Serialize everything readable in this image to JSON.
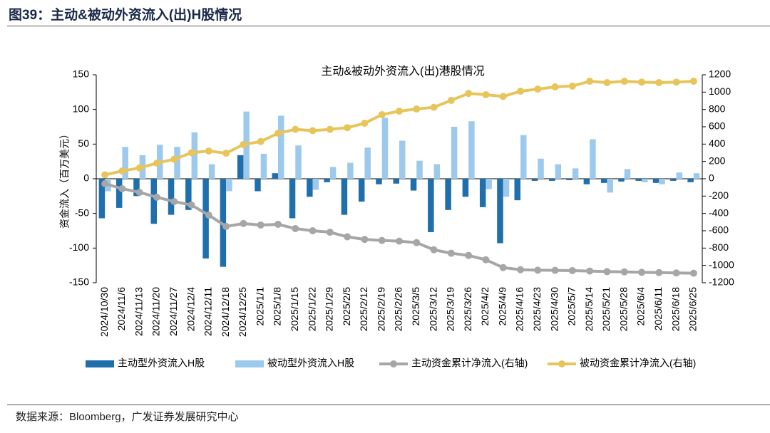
{
  "header": {
    "title": "图39：主动&被动外资流入(出)H股情况"
  },
  "footer": {
    "source": "数据来源：Bloomberg，广发证券发展研究中心"
  },
  "chart_data": {
    "type": "bar",
    "title": "主动&被动外资流入(出)港股情况",
    "y_label": "资金流入（百万美元）",
    "categories": [
      "2024/10/30",
      "2024/11/6",
      "2024/11/13",
      "2024/11/20",
      "2024/11/27",
      "2024/12/4",
      "2024/12/11",
      "2024/12/18",
      "2024/12/25",
      "2025/1/1",
      "2025/1/8",
      "2025/1/15",
      "2025/1/22",
      "2025/1/29",
      "2025/2/5",
      "2025/2/12",
      "2025/2/19",
      "2025/2/26",
      "2025/3/5",
      "2025/3/12",
      "2025/3/19",
      "2025/3/26",
      "2025/4/2",
      "2025/4/9",
      "2025/4/16",
      "2025/4/23",
      "2025/4/30",
      "2025/5/7",
      "2025/5/14",
      "2025/5/21",
      "2025/5/28",
      "2025/6/4",
      "2025/6/11",
      "2025/6/18",
      "2025/6/25"
    ],
    "ylim": [
      -150,
      150
    ],
    "yticks": [
      -150,
      -100,
      -50,
      0,
      50,
      100,
      150
    ],
    "y2lim": [
      -1200,
      1200
    ],
    "y2ticks": [
      -1200,
      -1000,
      -800,
      -600,
      -400,
      -200,
      0,
      200,
      400,
      600,
      800,
      1000,
      1200
    ],
    "series": [
      {
        "name": "主动型外资流入H股",
        "type": "bar",
        "color": "#1f6fad",
        "values": [
          -57,
          -42,
          -25,
          -65,
          -52,
          -45,
          -115,
          -127,
          34,
          -18,
          8,
          -57,
          -26,
          -5,
          -52,
          -33,
          -8,
          -7,
          -17,
          -77,
          -45,
          -26,
          -41,
          -93,
          -31,
          -3,
          -3,
          -2,
          -8,
          -6,
          -4,
          -3,
          -6,
          -3,
          -5
        ]
      },
      {
        "name": "被动型外资流入H股",
        "type": "bar",
        "color": "#9dcaec",
        "values": [
          -18,
          46,
          34,
          49,
          46,
          67,
          21,
          -18,
          97,
          36,
          91,
          48,
          -16,
          17,
          23,
          45,
          88,
          55,
          26,
          21,
          75,
          83,
          -15,
          -26,
          63,
          29,
          21,
          15,
          57,
          -20,
          14,
          -5,
          -8,
          9,
          8
        ]
      },
      {
        "name": "主动资金累计净流入(右轴)",
        "type": "line",
        "axis": "y2",
        "color": "#a6a6a6",
        "values": [
          -57,
          -115,
          -157,
          -213,
          -263,
          -303,
          -420,
          -550,
          -517,
          -534,
          -526,
          -575,
          -600,
          -617,
          -670,
          -700,
          -712,
          -720,
          -737,
          -820,
          -860,
          -885,
          -935,
          -1025,
          -1050,
          -1055,
          -1057,
          -1060,
          -1065,
          -1072,
          -1075,
          -1080,
          -1083,
          -1087,
          -1090
        ]
      },
      {
        "name": "被动资金累计净流入(右轴)",
        "type": "line",
        "axis": "y2",
        "color": "#e8c55a",
        "values": [
          45,
          90,
          125,
          180,
          225,
          300,
          320,
          295,
          395,
          430,
          525,
          570,
          555,
          570,
          590,
          640,
          740,
          780,
          805,
          825,
          905,
          985,
          970,
          950,
          1010,
          1035,
          1060,
          1070,
          1125,
          1110,
          1125,
          1115,
          1110,
          1115,
          1125
        ]
      }
    ]
  }
}
